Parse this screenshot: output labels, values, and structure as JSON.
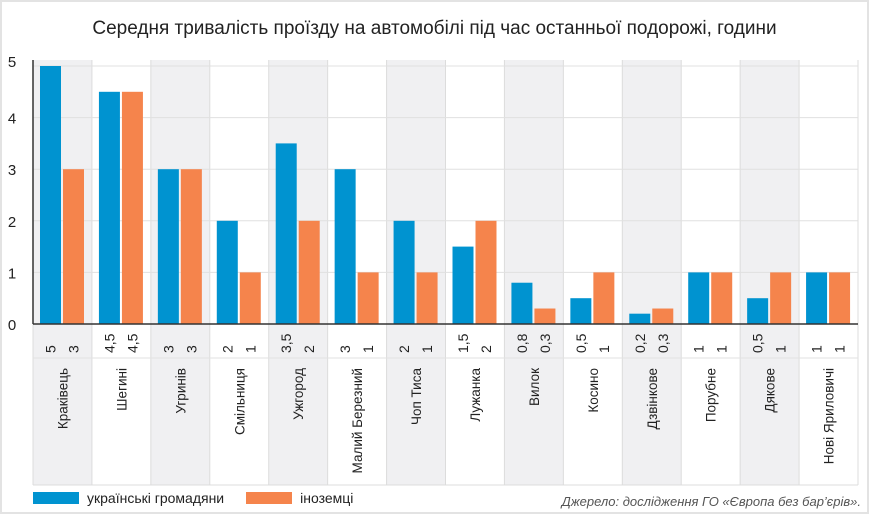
{
  "chart_data": {
    "type": "bar",
    "title": "Середня тривалість проїзду на автомобілі під час останньої подорожі, години",
    "xlabel": "",
    "ylabel": "",
    "ylim": [
      0,
      5
    ],
    "yticks": [
      "0",
      "1",
      "2",
      "3",
      "4",
      "5"
    ],
    "grid": true,
    "legend_position": "bottom-left",
    "categories": [
      "Краківець",
      "Шегині",
      "Угринів",
      "Смільниця",
      "Ужгород",
      "Малий Березний",
      "Чоп Тиса",
      "Лужанка",
      "Вилок",
      "Косино",
      "Дзвінкове",
      "Порубне",
      "Дякове",
      "Нові Яриловичі"
    ],
    "series": [
      {
        "name": "українські громадяни",
        "color": "#0093d0",
        "values": [
          5,
          4.5,
          3,
          2,
          3.5,
          3,
          2,
          1.5,
          0.8,
          0.5,
          0.2,
          1,
          0.5,
          1
        ],
        "labels": [
          "5",
          "4,5",
          "3",
          "2",
          "3,5",
          "3",
          "2",
          "1,5",
          "0,8",
          "0,5",
          "0,2",
          "1",
          "0,5",
          "1"
        ]
      },
      {
        "name": "іноземці",
        "color": "#f5844c",
        "values": [
          3,
          4.5,
          3,
          1,
          2,
          1,
          1,
          2,
          0.3,
          1,
          0.3,
          1,
          1,
          1
        ],
        "labels": [
          "3",
          "4,5",
          "3",
          "1",
          "2",
          "1",
          "1",
          "2",
          "0,3",
          "1",
          "0,3",
          "1",
          "1",
          "1"
        ]
      }
    ]
  },
  "source": "Джерело: дослідження ГО «Європа без бар’єрів»."
}
